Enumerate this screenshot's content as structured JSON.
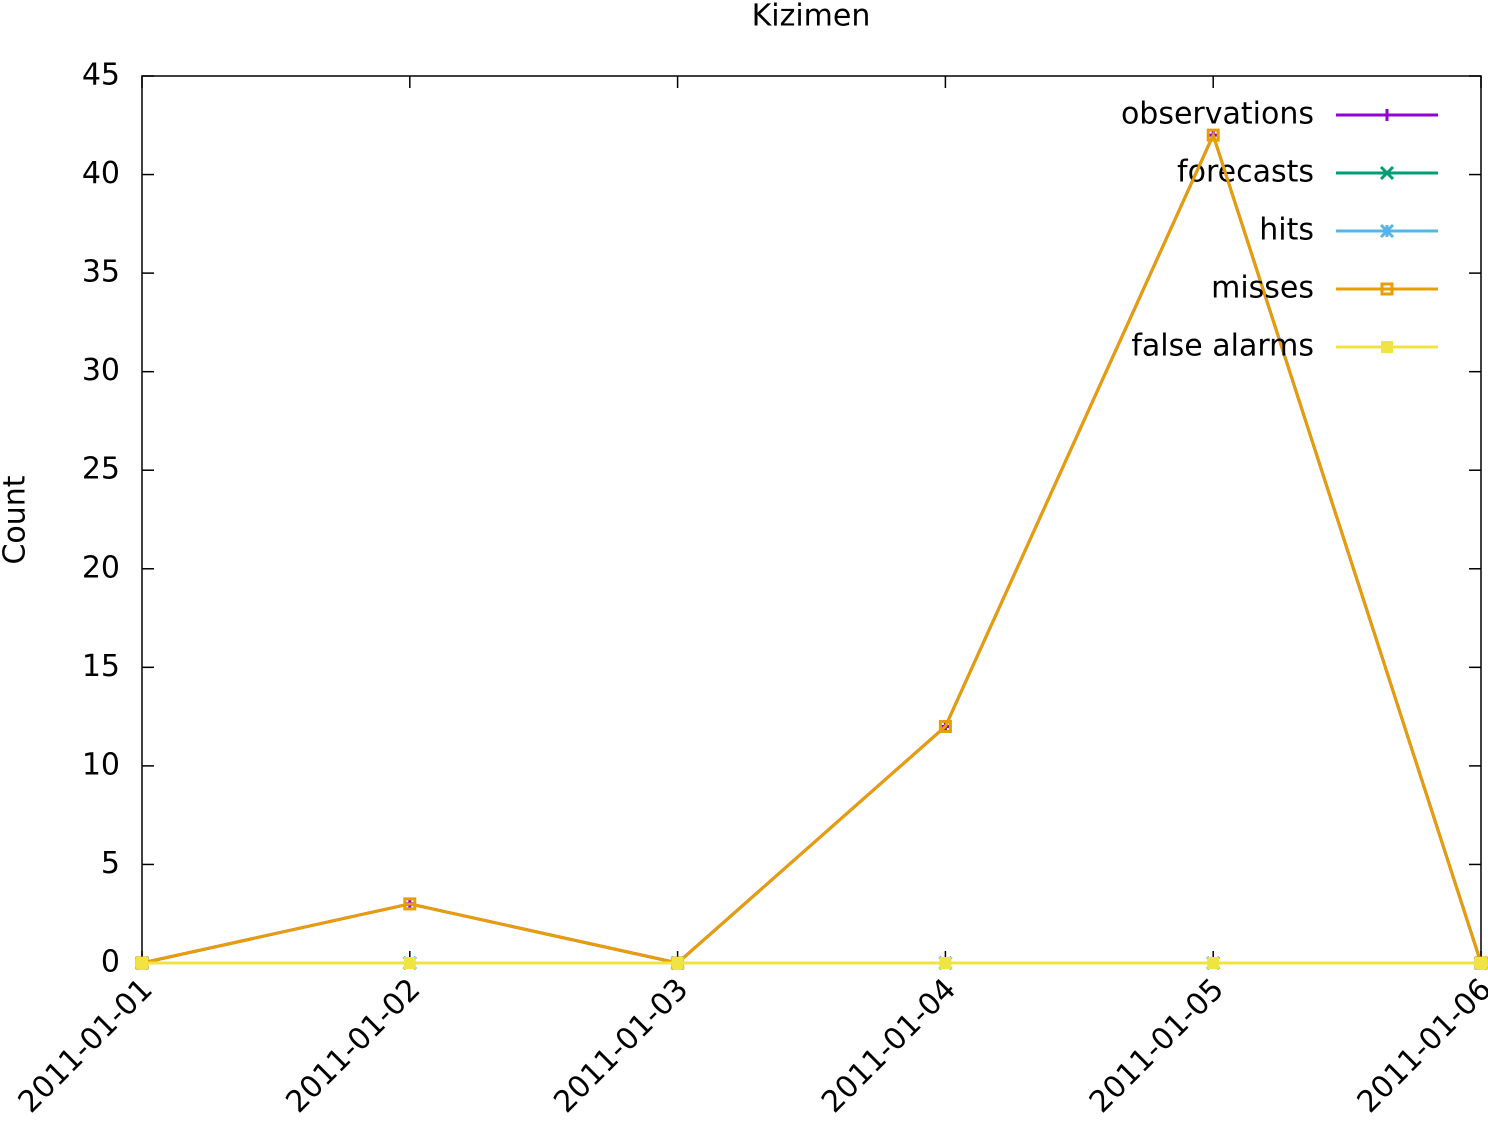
{
  "chart_data": {
    "type": "line",
    "title": "Kizimen",
    "y_label": "Count",
    "categories": [
      "2011-01-01",
      "2011-01-02",
      "2011-01-03",
      "2011-01-04",
      "2011-01-05",
      "2011-01-06"
    ],
    "series": [
      {
        "name": "observations",
        "color": "#9400d3",
        "marker": "plus",
        "values": [
          0,
          3,
          0,
          12,
          42,
          0
        ]
      },
      {
        "name": "forecasts",
        "color": "#009e73",
        "marker": "cross",
        "values": [
          0,
          0,
          0,
          0,
          0,
          0
        ]
      },
      {
        "name": "hits",
        "color": "#56b4e9",
        "marker": "star",
        "values": [
          0,
          0,
          0,
          0,
          0,
          0
        ]
      },
      {
        "name": "misses",
        "color": "#e69f00",
        "marker": "open-square",
        "values": [
          0,
          3,
          0,
          12,
          42,
          0
        ]
      },
      {
        "name": "false alarms",
        "color": "#f0e442",
        "marker": "filled-square",
        "values": [
          0,
          0,
          0,
          0,
          0,
          0
        ]
      }
    ],
    "ylim": [
      0,
      45
    ],
    "yticks": [
      0,
      5,
      10,
      15,
      20,
      25,
      30,
      35,
      40,
      45
    ],
    "legend": "top right"
  }
}
